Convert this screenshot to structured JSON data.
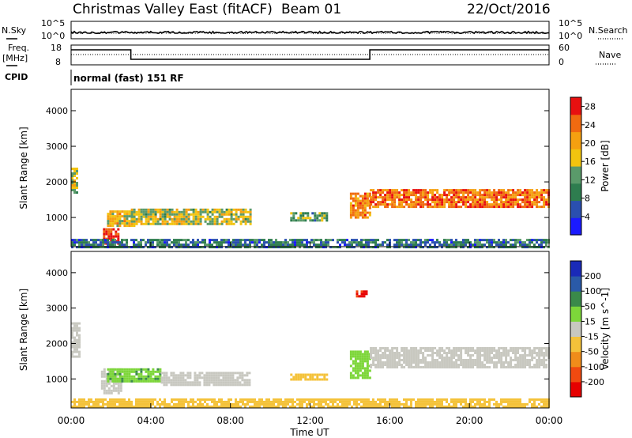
{
  "header": {
    "station": "Christmas Valley East (fitACF)",
    "beam": "Beam 01",
    "date": "22/Oct/2016"
  },
  "top_panels": {
    "nsky_label": "N.Sky",
    "nsearch_label": "N.Search",
    "freq_label_1": "Freq.",
    "freq_label_2": "[MHz]",
    "nave_label": "Nave",
    "cpid_label": "CPID",
    "cpid_text": "normal (fast) 151 RF",
    "noise_ticks_left": [
      "10^5",
      "10^0"
    ],
    "noise_ticks_right": [
      "10^5",
      "10^0"
    ],
    "freq_ticks": [
      "18",
      "8"
    ],
    "nave_ticks": [
      "60",
      "0"
    ]
  },
  "x_axis": {
    "label": "Time UT",
    "ticks": [
      "00:00",
      "04:00",
      "08:00",
      "12:00",
      "16:00",
      "20:00",
      "00:00"
    ]
  },
  "colors": {
    "power": [
      "#1a1aff",
      "#2a4fb0",
      "#2e7d4f",
      "#5a9a6a",
      "#f2c40f",
      "#f5a010",
      "#f06a10",
      "#e81010"
    ],
    "velocity": [
      "#e60000",
      "#f04a10",
      "#f08c1a",
      "#f4c23a",
      "#c8c8c0",
      "#7dd63a",
      "#3a8a4a",
      "#2a5aa8",
      "#1a2ab8"
    ]
  },
  "chart_data": [
    {
      "type": "heatmap",
      "title": "",
      "ylabel": "Slant Range [km]",
      "xlabel": "",
      "x_range_hours": [
        0,
        24
      ],
      "ylim": [
        180,
        4600
      ],
      "yticks": [
        1000,
        2000,
        3000,
        4000
      ],
      "colorbar_label": "Power [dB]",
      "colorbar_ticks": [
        "4",
        "8",
        "12",
        "16",
        "20",
        "24",
        "28"
      ],
      "colorbar_range": [
        0,
        30
      ],
      "regions": [
        {
          "t0": 0.0,
          "t1": 0.3,
          "r0": 1700,
          "r1": 2400,
          "value": 16
        },
        {
          "t0": 1.6,
          "t1": 2.4,
          "r0": 250,
          "r1": 700,
          "value": 28
        },
        {
          "t0": 1.8,
          "t1": 3.2,
          "r0": 750,
          "r1": 1200,
          "value": 18
        },
        {
          "t0": 3.0,
          "t1": 9.0,
          "r0": 800,
          "r1": 1250,
          "value": 16
        },
        {
          "t0": 11.0,
          "t1": 12.8,
          "r0": 950,
          "r1": 1150,
          "value": 12
        },
        {
          "t0": 14.0,
          "t1": 15.0,
          "r0": 1000,
          "r1": 1700,
          "value": 22
        },
        {
          "t0": 15.0,
          "t1": 24.0,
          "r0": 1300,
          "r1": 1800,
          "value": 24
        },
        {
          "t0": 0.0,
          "t1": 24.0,
          "r0": 200,
          "r1": 400,
          "value": 8
        }
      ]
    },
    {
      "type": "heatmap",
      "title": "",
      "ylabel": "Slant Range [km]",
      "xlabel": "Time UT",
      "x_range_hours": [
        0,
        24
      ],
      "ylim": [
        180,
        4600
      ],
      "yticks": [
        1000,
        2000,
        3000,
        4000
      ],
      "colorbar_label": "Velocity [m s^-1]",
      "colorbar_ticks": [
        "-200",
        "-100",
        "-50",
        "-15",
        "15",
        "50",
        "100",
        "200"
      ],
      "regions": [
        {
          "t0": 0.0,
          "t1": 0.4,
          "r0": 1600,
          "r1": 2600,
          "value": 0
        },
        {
          "t0": 1.5,
          "t1": 2.5,
          "r0": 600,
          "r1": 1300,
          "value": 0
        },
        {
          "t0": 1.8,
          "t1": 4.5,
          "r0": 900,
          "r1": 1300,
          "value": 40
        },
        {
          "t0": 4.5,
          "t1": 9.0,
          "r0": 800,
          "r1": 1200,
          "value": 0
        },
        {
          "t0": 11.0,
          "t1": 12.8,
          "r0": 950,
          "r1": 1150,
          "value": -30
        },
        {
          "t0": 14.0,
          "t1": 15.0,
          "r0": 1000,
          "r1": 1800,
          "value": 30
        },
        {
          "t0": 15.0,
          "t1": 24.0,
          "r0": 1300,
          "r1": 1900,
          "value": 0
        },
        {
          "t0": 0.0,
          "t1": 24.0,
          "r0": 200,
          "r1": 450,
          "value": -30
        },
        {
          "t0": 14.3,
          "t1": 14.8,
          "r0": 3300,
          "r1": 3500,
          "value": -200
        }
      ]
    }
  ]
}
